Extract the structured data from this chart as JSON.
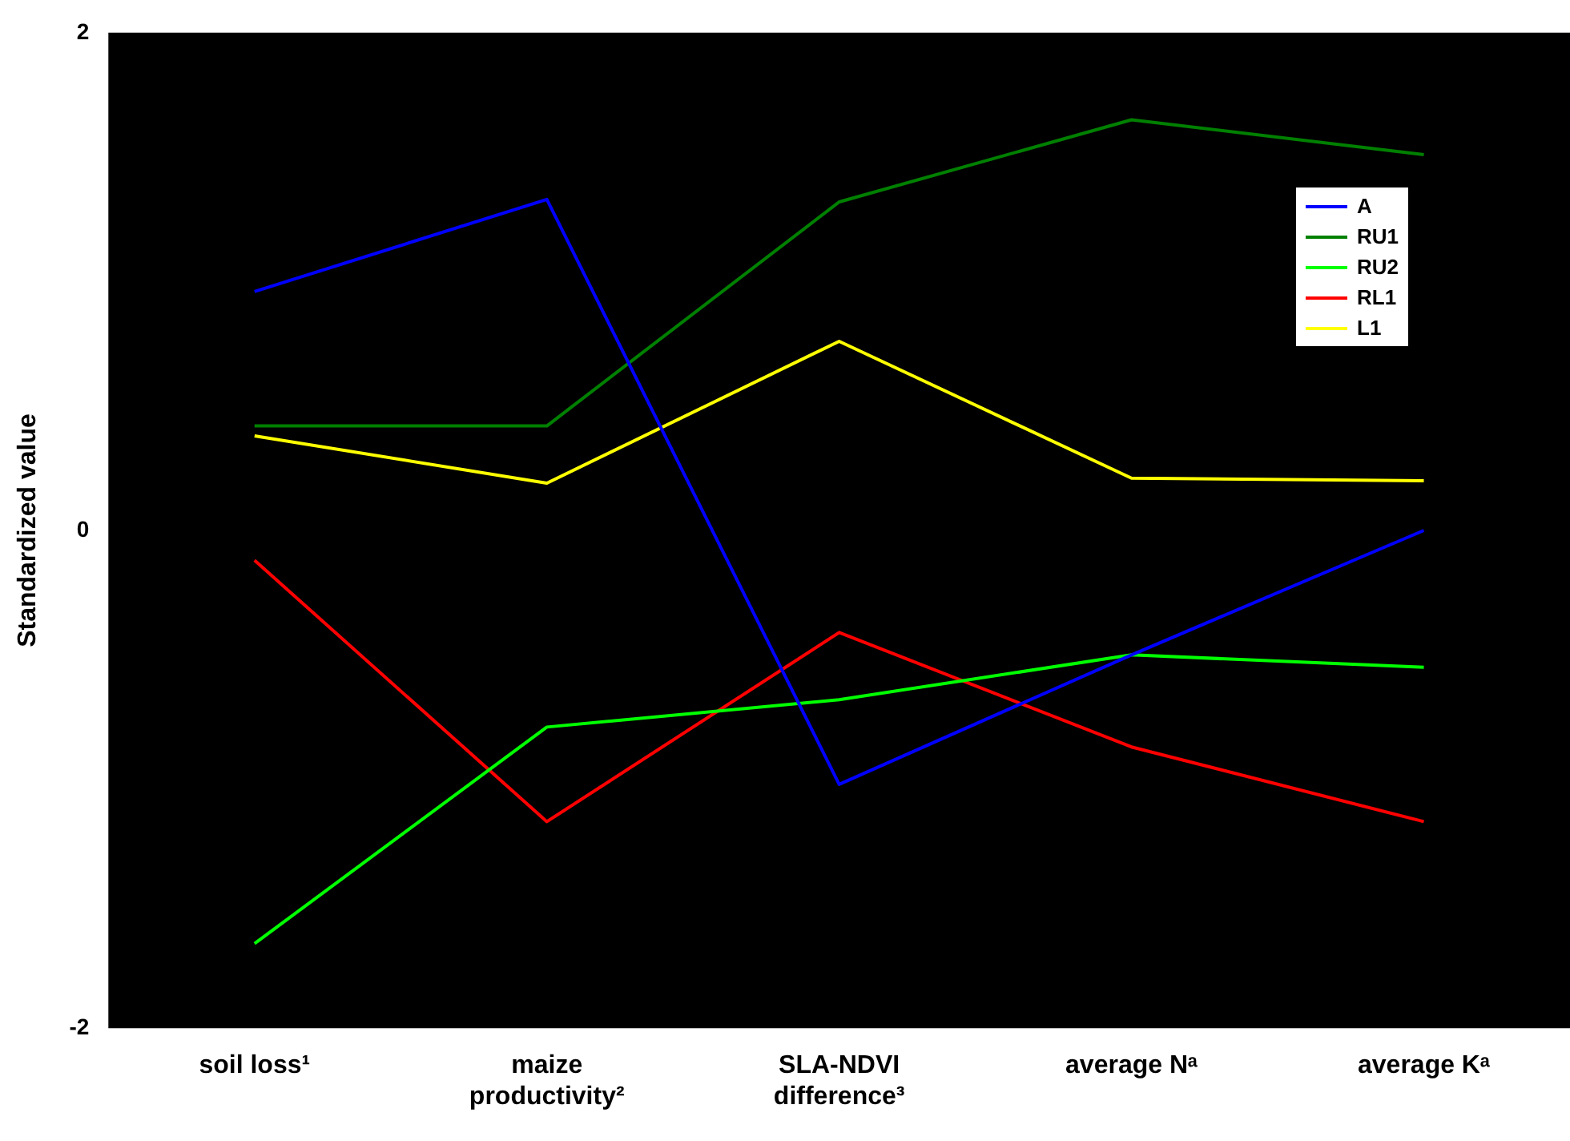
{
  "chart_data": {
    "type": "line",
    "ylabel": "Standardized value",
    "categories": [
      "soil loss¹",
      "maize productivity²",
      "SLA-NDVI difference³",
      "average Nᵃ",
      "average Kᵃ"
    ],
    "series": [
      {
        "name": "A",
        "color": "#0000ff",
        "values": [
          0.96,
          1.33,
          -1.02,
          -0.5,
          0
        ]
      },
      {
        "name": "RU1",
        "color": "#008000",
        "values": [
          0.42,
          0.42,
          1.32,
          1.65,
          1.51
        ]
      },
      {
        "name": "RU2",
        "color": "#00ff00",
        "values": [
          -1.66,
          -0.79,
          -0.68,
          -0.5,
          -0.55
        ]
      },
      {
        "name": "RL1",
        "color": "#ff0000",
        "values": [
          -0.12,
          -1.17,
          -0.41,
          -0.87,
          -1.17
        ]
      },
      {
        "name": "L1",
        "color": "#ffff00",
        "values": [
          0.38,
          0.19,
          0.76,
          0.21,
          0.2
        ]
      }
    ],
    "ylim": [
      -2,
      2
    ],
    "yticks": [
      -2,
      0,
      2
    ],
    "grid": false,
    "legend": "top right",
    "marker": "none",
    "line_style": "solid"
  }
}
